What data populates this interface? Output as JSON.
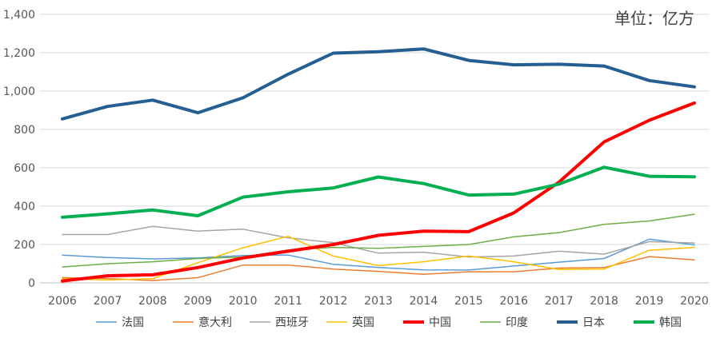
{
  "chart_data": {
    "type": "line",
    "title": "",
    "unit_label": "单位：亿方",
    "xlabel": "",
    "ylabel": "",
    "x": [
      "2006",
      "2007",
      "2008",
      "2009",
      "2010",
      "2011",
      "2012",
      "2013",
      "2014",
      "2015",
      "2016",
      "2017",
      "2018",
      "2019",
      "2020"
    ],
    "ylim": [
      0,
      1400
    ],
    "yticks": [
      "0",
      "200",
      "400",
      "600",
      "800",
      "1,000",
      "1,200",
      "1,400"
    ],
    "grid": "horizontal",
    "legend_position": "bottom",
    "series": [
      {
        "name": "法国",
        "color": "#5b9bd5",
        "emphasis": false,
        "values": [
          145,
          132,
          125,
          130,
          143,
          145,
          97,
          80,
          68,
          67,
          88,
          108,
          127,
          228,
          198
        ]
      },
      {
        "name": "意大利",
        "color": "#ed7d31",
        "emphasis": false,
        "values": [
          27,
          23,
          12,
          27,
          93,
          93,
          72,
          60,
          45,
          58,
          58,
          77,
          80,
          137,
          120
        ]
      },
      {
        "name": "西班牙",
        "color": "#a5a5a5",
        "emphasis": false,
        "values": [
          252,
          252,
          295,
          270,
          280,
          235,
          210,
          155,
          160,
          135,
          140,
          165,
          150,
          215,
          208
        ]
      },
      {
        "name": "英国",
        "color": "#ffc000",
        "emphasis": false,
        "values": [
          22,
          15,
          22,
          105,
          183,
          243,
          140,
          90,
          110,
          140,
          110,
          70,
          72,
          170,
          185
        ]
      },
      {
        "name": "中国",
        "color": "#ff0000",
        "emphasis": true,
        "values": [
          10,
          37,
          42,
          80,
          130,
          165,
          200,
          248,
          270,
          267,
          365,
          525,
          735,
          848,
          938
        ]
      },
      {
        "name": "印度",
        "color": "#70ad47",
        "emphasis": false,
        "values": [
          83,
          100,
          110,
          127,
          135,
          172,
          185,
          180,
          190,
          200,
          240,
          262,
          305,
          323,
          358
        ]
      },
      {
        "name": "日本",
        "color": "#255e91",
        "emphasis": true,
        "values": [
          855,
          920,
          953,
          887,
          965,
          1088,
          1198,
          1205,
          1220,
          1160,
          1137,
          1140,
          1131,
          1055,
          1022
        ]
      },
      {
        "name": "韩国",
        "color": "#00b050",
        "emphasis": true,
        "values": [
          342,
          360,
          380,
          350,
          447,
          475,
          495,
          552,
          518,
          458,
          463,
          515,
          603,
          556,
          553
        ]
      }
    ]
  }
}
